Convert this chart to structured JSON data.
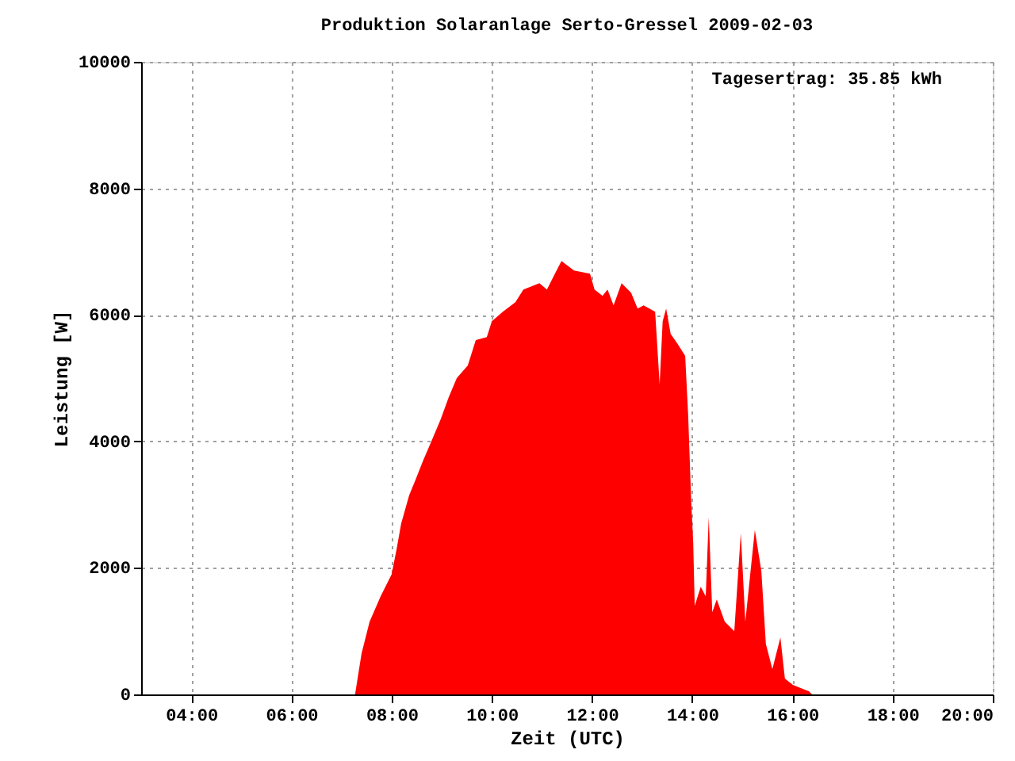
{
  "chart_data": {
    "type": "area",
    "title": "Produktion Solaranlage Serto-Gressel 2009-02-03",
    "xlabel": "Zeit (UTC)",
    "ylabel": "Leistung [W]",
    "annotations": [
      "Tagesertrag: 35.85 kWh"
    ],
    "x": [
      7.27,
      7.31,
      7.4,
      7.56,
      7.78,
      8.0,
      8.1,
      8.19,
      8.35,
      8.48,
      8.63,
      8.82,
      8.98,
      9.14,
      9.3,
      9.52,
      9.68,
      9.9,
      10.0,
      10.22,
      10.47,
      10.63,
      10.95,
      11.1,
      11.26,
      11.39,
      11.64,
      11.96,
      12.05,
      12.21,
      12.31,
      12.43,
      12.59,
      12.78,
      12.91,
      13.03,
      13.26,
      13.35,
      13.41,
      13.48,
      13.57,
      13.7,
      13.86,
      13.92,
      13.98,
      14.02,
      14.05,
      14.17,
      14.27,
      14.33,
      14.4,
      14.49,
      14.65,
      14.84,
      14.97,
      15.06,
      15.25,
      15.38,
      15.47,
      15.6,
      15.76,
      15.85,
      16.01,
      16.33,
      16.39
    ],
    "series": [
      {
        "color": "#ff0000",
        "values": [
          0,
          200,
          650,
          1150,
          1550,
          1900,
          2300,
          2700,
          3150,
          3400,
          3700,
          4050,
          4350,
          4700,
          5000,
          5200,
          5600,
          5650,
          5900,
          6050,
          6200,
          6400,
          6500,
          6400,
          6650,
          6850,
          6700,
          6650,
          6400,
          6300,
          6400,
          6150,
          6500,
          6350,
          6100,
          6150,
          6050,
          4900,
          5900,
          6100,
          5700,
          5550,
          5350,
          4400,
          3050,
          2400,
          1400,
          1700,
          1550,
          2800,
          1300,
          1500,
          1150,
          1000,
          2550,
          1150,
          2600,
          1950,
          800,
          400,
          900,
          250,
          150,
          50,
          0
        ]
      }
    ],
    "xlim": [
      3,
      20
    ],
    "xticks": [
      {
        "value": 4,
        "label": "04:00"
      },
      {
        "value": 6,
        "label": "06:00"
      },
      {
        "value": 8,
        "label": "08:00"
      },
      {
        "value": 10,
        "label": "10:00"
      },
      {
        "value": 12,
        "label": "12:00"
      },
      {
        "value": 14,
        "label": "14:00"
      },
      {
        "value": 16,
        "label": "16:00"
      },
      {
        "value": 18,
        "label": "18:00"
      },
      {
        "value": 20,
        "label": "20:00"
      }
    ],
    "ylim": [
      0,
      10000
    ],
    "yticks": [
      0,
      2000,
      4000,
      6000,
      8000,
      10000
    ],
    "grid": true
  }
}
